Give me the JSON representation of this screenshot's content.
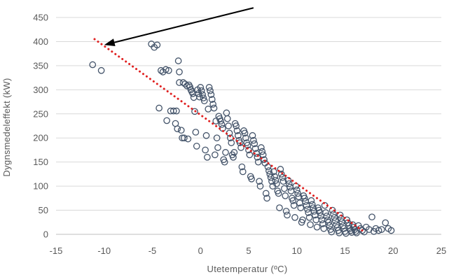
{
  "chart_data": {
    "type": "scatter",
    "title": "",
    "xlabel": "Utetemperatur  (ºC)",
    "ylabel": "Dygnsmedeleffekt  (kW)",
    "xlim": [
      -15,
      25
    ],
    "ylim": [
      0,
      450
    ],
    "x_ticks": [
      "-15",
      "-10",
      "-5",
      "0",
      "5",
      "10",
      "15",
      "20",
      "25"
    ],
    "y_ticks": [
      "0",
      "50",
      "100",
      "150",
      "200",
      "250",
      "300",
      "350",
      "400",
      "450"
    ],
    "grid": "horizontal",
    "legend": "none",
    "colors": {
      "points": "#44546A",
      "trend": "#E02020",
      "arrow": "#000000",
      "grid": "#D9D9D9",
      "axis": "#BFBFBF"
    },
    "series": [
      {
        "marker": "hollow-circle",
        "points": [
          [
            -11.2,
            352
          ],
          [
            -10.3,
            340
          ],
          [
            -5.1,
            395
          ],
          [
            -4.8,
            388
          ],
          [
            -4.5,
            393
          ],
          [
            -4.3,
            262
          ],
          [
            -4.1,
            340
          ],
          [
            -3.9,
            337
          ],
          [
            -3.5,
            236
          ],
          [
            -3.6,
            342
          ],
          [
            -3.3,
            340
          ],
          [
            -3.1,
            256
          ],
          [
            -2.8,
            256
          ],
          [
            -2.6,
            230
          ],
          [
            -2.5,
            256
          ],
          [
            -2.4,
            219
          ],
          [
            -2.3,
            360
          ],
          [
            -2.2,
            337
          ],
          [
            -2.2,
            315
          ],
          [
            -2.0,
            216
          ],
          [
            -1.9,
            200
          ],
          [
            -1.8,
            315
          ],
          [
            -1.7,
            200
          ],
          [
            -1.6,
            312
          ],
          [
            -1.4,
            308
          ],
          [
            -1.3,
            198
          ],
          [
            -1.2,
            310
          ],
          [
            -1.1,
            306
          ],
          [
            -1.0,
            300
          ],
          [
            -0.9,
            296
          ],
          [
            -0.8,
            292
          ],
          [
            -0.7,
            284
          ],
          [
            -0.6,
            255
          ],
          [
            -0.5,
            212
          ],
          [
            -0.4,
            183
          ],
          [
            -0.3,
            300
          ],
          [
            -0.2,
            292
          ],
          [
            -0.1,
            285
          ],
          [
            0.0,
            305
          ],
          [
            0.1,
            298
          ],
          [
            0.2,
            290
          ],
          [
            0.3,
            283
          ],
          [
            0.4,
            277
          ],
          [
            0.5,
            175
          ],
          [
            0.6,
            205
          ],
          [
            0.7,
            160
          ],
          [
            0.8,
            260
          ],
          [
            0.9,
            305
          ],
          [
            1.0,
            298
          ],
          [
            1.1,
            290
          ],
          [
            1.2,
            280
          ],
          [
            1.3,
            270
          ],
          [
            1.4,
            262
          ],
          [
            1.5,
            165
          ],
          [
            1.6,
            235
          ],
          [
            1.7,
            200
          ],
          [
            1.8,
            180
          ],
          [
            1.9,
            245
          ],
          [
            2.0,
            240
          ],
          [
            2.1,
            235
          ],
          [
            2.2,
            228
          ],
          [
            2.3,
            220
          ],
          [
            2.4,
            155
          ],
          [
            2.5,
            150
          ],
          [
            2.6,
            170
          ],
          [
            2.7,
            252
          ],
          [
            2.8,
            240
          ],
          [
            2.9,
            225
          ],
          [
            3.0,
            210
          ],
          [
            3.1,
            200
          ],
          [
            3.2,
            190
          ],
          [
            3.3,
            165
          ],
          [
            3.4,
            160
          ],
          [
            3.5,
            170
          ],
          [
            3.6,
            230
          ],
          [
            3.7,
            225
          ],
          [
            3.8,
            215
          ],
          [
            3.9,
            205
          ],
          [
            4.0,
            195
          ],
          [
            4.1,
            190
          ],
          [
            4.2,
            180
          ],
          [
            4.3,
            140
          ],
          [
            4.4,
            130
          ],
          [
            4.5,
            215
          ],
          [
            4.6,
            210
          ],
          [
            4.7,
            200
          ],
          [
            4.8,
            190
          ],
          [
            4.9,
            185
          ],
          [
            5.0,
            175
          ],
          [
            5.1,
            165
          ],
          [
            5.2,
            120
          ],
          [
            5.3,
            115
          ],
          [
            5.4,
            205
          ],
          [
            5.5,
            195
          ],
          [
            5.6,
            188
          ],
          [
            5.7,
            178
          ],
          [
            5.8,
            168
          ],
          [
            5.9,
            160
          ],
          [
            6.0,
            150
          ],
          [
            6.1,
            110
          ],
          [
            6.2,
            100
          ],
          [
            6.3,
            180
          ],
          [
            6.4,
            172
          ],
          [
            6.5,
            165
          ],
          [
            6.6,
            155
          ],
          [
            6.7,
            148
          ],
          [
            6.8,
            85
          ],
          [
            6.9,
            75
          ],
          [
            7.0,
            140
          ],
          [
            7.1,
            132
          ],
          [
            7.2,
            125
          ],
          [
            7.3,
            118
          ],
          [
            7.4,
            110
          ],
          [
            7.5,
            100
          ],
          [
            7.6,
            130
          ],
          [
            7.7,
            120
          ],
          [
            7.8,
            112
          ],
          [
            7.9,
            105
          ],
          [
            8.0,
            90
          ],
          [
            8.1,
            85
          ],
          [
            8.2,
            55
          ],
          [
            8.3,
            135
          ],
          [
            8.4,
            125
          ],
          [
            8.5,
            118
          ],
          [
            8.6,
            110
          ],
          [
            8.7,
            95
          ],
          [
            8.8,
            80
          ],
          [
            8.9,
            48
          ],
          [
            9.0,
            40
          ],
          [
            9.1,
            112
          ],
          [
            9.2,
            105
          ],
          [
            9.3,
            98
          ],
          [
            9.4,
            90
          ],
          [
            9.5,
            75
          ],
          [
            9.6,
            70
          ],
          [
            9.7,
            60
          ],
          [
            9.8,
            35
          ],
          [
            9.9,
            100
          ],
          [
            10.0,
            92
          ],
          [
            10.1,
            85
          ],
          [
            10.2,
            78
          ],
          [
            10.3,
            65
          ],
          [
            10.4,
            55
          ],
          [
            10.5,
            25
          ],
          [
            10.6,
            30
          ],
          [
            10.7,
            80
          ],
          [
            10.8,
            75
          ],
          [
            10.9,
            68
          ],
          [
            11.0,
            60
          ],
          [
            11.1,
            52
          ],
          [
            11.2,
            45
          ],
          [
            11.3,
            35
          ],
          [
            11.4,
            20
          ],
          [
            11.5,
            70
          ],
          [
            11.6,
            62
          ],
          [
            11.7,
            55
          ],
          [
            11.8,
            48
          ],
          [
            11.9,
            40
          ],
          [
            12.0,
            30
          ],
          [
            12.1,
            15
          ],
          [
            12.2,
            55
          ],
          [
            12.3,
            50
          ],
          [
            12.4,
            45
          ],
          [
            12.5,
            38
          ],
          [
            12.6,
            30
          ],
          [
            12.7,
            22
          ],
          [
            12.8,
            12
          ],
          [
            12.9,
            60
          ],
          [
            13.0,
            45
          ],
          [
            13.1,
            38
          ],
          [
            13.2,
            30
          ],
          [
            13.3,
            25
          ],
          [
            13.4,
            18
          ],
          [
            13.5,
            10
          ],
          [
            13.6,
            5
          ],
          [
            13.7,
            50
          ],
          [
            13.8,
            42
          ],
          [
            13.9,
            35
          ],
          [
            14.0,
            28
          ],
          [
            14.1,
            20
          ],
          [
            14.2,
            14
          ],
          [
            14.3,
            8
          ],
          [
            14.4,
            3
          ],
          [
            14.5,
            40
          ],
          [
            14.6,
            33
          ],
          [
            14.7,
            26
          ],
          [
            14.8,
            18
          ],
          [
            14.9,
            12
          ],
          [
            15.0,
            6
          ],
          [
            15.1,
            2
          ],
          [
            15.2,
            30
          ],
          [
            15.3,
            24
          ],
          [
            15.4,
            18
          ],
          [
            15.5,
            12
          ],
          [
            15.6,
            8
          ],
          [
            15.7,
            4
          ],
          [
            15.8,
            20
          ],
          [
            15.9,
            15
          ],
          [
            16.0,
            10
          ],
          [
            16.1,
            6
          ],
          [
            16.2,
            3
          ],
          [
            16.4,
            18
          ],
          [
            16.6,
            12
          ],
          [
            16.8,
            8
          ],
          [
            17.0,
            5
          ],
          [
            17.2,
            15
          ],
          [
            17.5,
            10
          ],
          [
            17.8,
            36
          ],
          [
            18.0,
            6
          ],
          [
            18.2,
            12
          ],
          [
            18.5,
            8
          ],
          [
            18.8,
            10
          ],
          [
            19.2,
            24
          ],
          [
            19.5,
            12
          ],
          [
            19.8,
            8
          ]
        ]
      }
    ],
    "trendline": {
      "style": "dotted",
      "start": [
        -11,
        405
      ],
      "end": [
        17,
        5
      ]
    },
    "annotation_arrow": {
      "tail": [
        5.5,
        470
      ],
      "head": [
        -10,
        393
      ]
    }
  }
}
